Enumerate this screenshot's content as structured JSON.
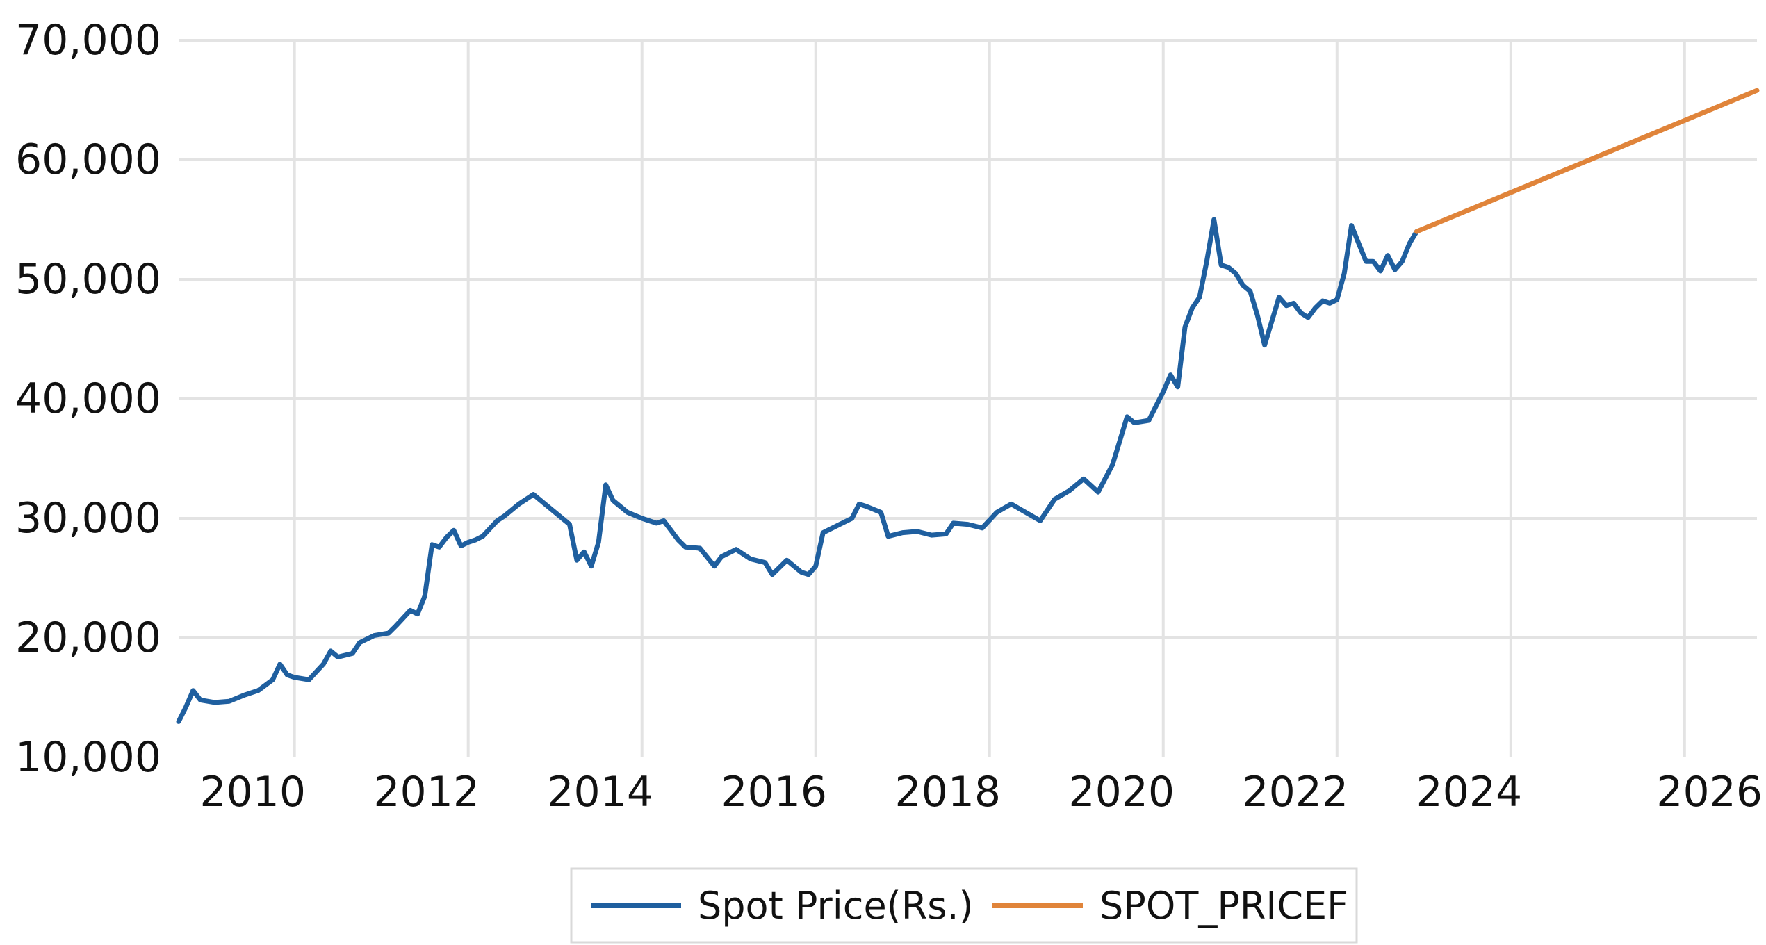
{
  "chart_data": {
    "type": "line",
    "title": "",
    "xlabel": "",
    "ylabel": "",
    "ylim": [
      10000,
      70000
    ],
    "xlim": [
      "2008-09",
      "2026-11"
    ],
    "yticks": [
      "10,000",
      "20,000",
      "30,000",
      "40,000",
      "50,000",
      "60,000",
      "70,000"
    ],
    "xticks": [
      "2010",
      "2012",
      "2014",
      "2016",
      "2018",
      "2020",
      "2022",
      "2024",
      "2026"
    ],
    "grid": true,
    "legend_position": "bottom",
    "series": [
      {
        "name": "Spot Price(Rs.)",
        "color": "#1f5f9f",
        "points": [
          [
            "2008-09",
            13000
          ],
          [
            "2008-10",
            14200
          ],
          [
            "2008-11",
            15600
          ],
          [
            "2008-12",
            14800
          ],
          [
            "2009-02",
            14600
          ],
          [
            "2009-04",
            14700
          ],
          [
            "2009-06",
            15200
          ],
          [
            "2009-08",
            15600
          ],
          [
            "2009-10",
            16500
          ],
          [
            "2009-11",
            17800
          ],
          [
            "2009-12",
            16900
          ],
          [
            "2010-01",
            16700
          ],
          [
            "2010-03",
            16500
          ],
          [
            "2010-05",
            17800
          ],
          [
            "2010-06",
            18900
          ],
          [
            "2010-07",
            18400
          ],
          [
            "2010-09",
            18700
          ],
          [
            "2010-10",
            19600
          ],
          [
            "2010-12",
            20200
          ],
          [
            "2011-02",
            20400
          ],
          [
            "2011-03",
            21000
          ],
          [
            "2011-05",
            22300
          ],
          [
            "2011-06",
            22000
          ],
          [
            "2011-07",
            23500
          ],
          [
            "2011-08",
            27800
          ],
          [
            "2011-09",
            27600
          ],
          [
            "2011-10",
            28400
          ],
          [
            "2011-11",
            29000
          ],
          [
            "2011-12",
            27700
          ],
          [
            "2012-01",
            28000
          ],
          [
            "2012-02",
            28200
          ],
          [
            "2012-03",
            28500
          ],
          [
            "2012-05",
            29800
          ],
          [
            "2012-06",
            30200
          ],
          [
            "2012-08",
            31200
          ],
          [
            "2012-10",
            32000
          ],
          [
            "2012-12",
            31000
          ],
          [
            "2013-02",
            30000
          ],
          [
            "2013-03",
            29500
          ],
          [
            "2013-04",
            26500
          ],
          [
            "2013-05",
            27200
          ],
          [
            "2013-06",
            26000
          ],
          [
            "2013-07",
            28000
          ],
          [
            "2013-08",
            32800
          ],
          [
            "2013-09",
            31500
          ],
          [
            "2013-11",
            30500
          ],
          [
            "2014-01",
            30000
          ],
          [
            "2014-03",
            29600
          ],
          [
            "2014-04",
            29800
          ],
          [
            "2014-06",
            28200
          ],
          [
            "2014-07",
            27600
          ],
          [
            "2014-09",
            27500
          ],
          [
            "2014-11",
            26000
          ],
          [
            "2014-12",
            26800
          ],
          [
            "2015-02",
            27400
          ],
          [
            "2015-04",
            26600
          ],
          [
            "2015-06",
            26300
          ],
          [
            "2015-07",
            25300
          ],
          [
            "2015-09",
            26500
          ],
          [
            "2015-11",
            25500
          ],
          [
            "2015-12",
            25300
          ],
          [
            "2016-01",
            26000
          ],
          [
            "2016-02",
            28800
          ],
          [
            "2016-04",
            29400
          ],
          [
            "2016-06",
            30000
          ],
          [
            "2016-07",
            31200
          ],
          [
            "2016-08",
            31000
          ],
          [
            "2016-10",
            30500
          ],
          [
            "2016-11",
            28500
          ],
          [
            "2017-01",
            28800
          ],
          [
            "2017-03",
            28900
          ],
          [
            "2017-05",
            28600
          ],
          [
            "2017-07",
            28700
          ],
          [
            "2017-08",
            29600
          ],
          [
            "2017-10",
            29500
          ],
          [
            "2017-12",
            29200
          ],
          [
            "2018-02",
            30500
          ],
          [
            "2018-04",
            31200
          ],
          [
            "2018-06",
            30500
          ],
          [
            "2018-08",
            29800
          ],
          [
            "2018-10",
            31600
          ],
          [
            "2018-12",
            32300
          ],
          [
            "2019-02",
            33300
          ],
          [
            "2019-04",
            32200
          ],
          [
            "2019-06",
            34500
          ],
          [
            "2019-07",
            36500
          ],
          [
            "2019-08",
            38500
          ],
          [
            "2019-09",
            38000
          ],
          [
            "2019-11",
            38200
          ],
          [
            "2020-01",
            40600
          ],
          [
            "2020-02",
            42000
          ],
          [
            "2020-03",
            41000
          ],
          [
            "2020-04",
            46000
          ],
          [
            "2020-05",
            47600
          ],
          [
            "2020-06",
            48500
          ],
          [
            "2020-07",
            51500
          ],
          [
            "2020-08",
            55000
          ],
          [
            "2020-09",
            51200
          ],
          [
            "2020-10",
            51000
          ],
          [
            "2020-11",
            50500
          ],
          [
            "2020-12",
            49500
          ],
          [
            "2021-01",
            49000
          ],
          [
            "2021-02",
            47000
          ],
          [
            "2021-03",
            44500
          ],
          [
            "2021-04",
            46500
          ],
          [
            "2021-05",
            48500
          ],
          [
            "2021-06",
            47800
          ],
          [
            "2021-07",
            48000
          ],
          [
            "2021-08",
            47200
          ],
          [
            "2021-09",
            46800
          ],
          [
            "2021-10",
            47600
          ],
          [
            "2021-11",
            48200
          ],
          [
            "2021-12",
            48000
          ],
          [
            "2022-01",
            48300
          ],
          [
            "2022-02",
            50500
          ],
          [
            "2022-03",
            54500
          ],
          [
            "2022-04",
            53000
          ],
          [
            "2022-05",
            51500
          ],
          [
            "2022-06",
            51500
          ],
          [
            "2022-07",
            50700
          ],
          [
            "2022-08",
            52000
          ],
          [
            "2022-09",
            50800
          ],
          [
            "2022-10",
            51500
          ],
          [
            "2022-11",
            53000
          ],
          [
            "2022-12",
            54000
          ]
        ]
      },
      {
        "name": "SPOT_PRICEF",
        "color": "#e0843a",
        "points": [
          [
            "2022-12",
            54000
          ],
          [
            "2026-11",
            65800
          ]
        ]
      }
    ]
  }
}
